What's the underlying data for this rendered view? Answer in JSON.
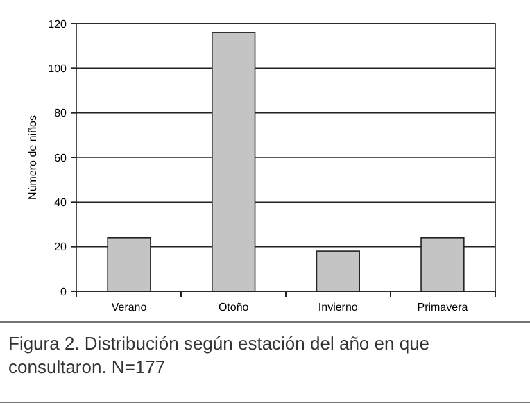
{
  "chart_data": {
    "type": "bar",
    "ylabel": "Número de niños",
    "categories": [
      "Verano",
      "Otoño",
      "Invierno",
      "Primavera"
    ],
    "values": [
      24,
      116,
      18,
      24
    ],
    "color": "#c4c4c4",
    "ylim": [
      0,
      120
    ],
    "yticks": [
      0,
      20,
      40,
      60,
      80,
      100,
      120
    ],
    "grid": "y",
    "annotations": [
      "Figura 2. Distribución según estación del año en que consultaron. N=177"
    ]
  }
}
